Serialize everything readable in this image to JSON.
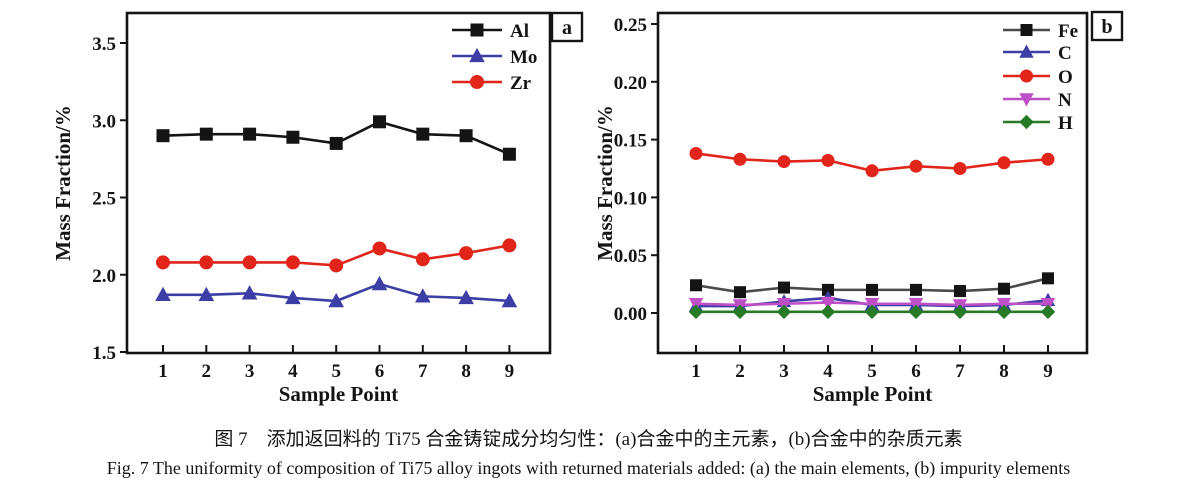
{
  "figure": {
    "caption_zh": "图 7　添加返回料的 Ti75 合金铸锭成分均匀性：(a)合金中的主元素，(b)合金中的杂质元素",
    "caption_en": "Fig. 7   The uniformity of composition of Ti75 alloy ingots with returned materials added: (a) the main elements, (b) impurity elements"
  },
  "chart_data": [
    {
      "type": "line",
      "panel_label": "a",
      "xlabel": "Sample Point",
      "ylabel": "Mass Fraction/%",
      "categories": [
        "1",
        "2",
        "3",
        "4",
        "5",
        "6",
        "7",
        "8",
        "9"
      ],
      "ylim": [
        1.5,
        3.5
      ],
      "yticks": [
        "1.5",
        "2.0",
        "2.5",
        "3.0",
        "3.5"
      ],
      "grid": "off",
      "legend_position": "top-right-inside",
      "series": [
        {
          "name": "Al",
          "marker": "square",
          "color": "#141414",
          "line_color": "#141414",
          "values": [
            2.9,
            2.91,
            2.91,
            2.89,
            2.85,
            2.99,
            2.91,
            2.9,
            2.78
          ]
        },
        {
          "name": "Mo",
          "marker": "triangle-up",
          "color": "#3d3da6",
          "line_color": "#3d3da6",
          "values": [
            1.87,
            1.87,
            1.88,
            1.85,
            1.83,
            1.94,
            1.86,
            1.85,
            1.83
          ]
        },
        {
          "name": "Zr",
          "marker": "circle",
          "color": "#e1251b",
          "line_color": "#e1251b",
          "values": [
            2.08,
            2.08,
            2.08,
            2.08,
            2.06,
            2.17,
            2.1,
            2.14,
            2.19
          ]
        }
      ]
    },
    {
      "type": "line",
      "panel_label": "b",
      "xlabel": "Sample Point",
      "ylabel": "Mass Fraction/%",
      "categories": [
        "1",
        "2",
        "3",
        "4",
        "5",
        "6",
        "7",
        "8",
        "9"
      ],
      "ylim": [
        0.0,
        0.25
      ],
      "yticks": [
        "0.00",
        "0.05",
        "0.10",
        "0.15",
        "0.20",
        "0.25"
      ],
      "grid": "off",
      "legend_position": "top-right-inside",
      "series": [
        {
          "name": "Fe",
          "marker": "square",
          "color": "#141414",
          "line_color": "#4a4a4a",
          "values": [
            0.024,
            0.018,
            0.022,
            0.02,
            0.02,
            0.02,
            0.019,
            0.021,
            0.03
          ]
        },
        {
          "name": "C",
          "marker": "triangle-up",
          "color": "#3d3da6",
          "line_color": "#3d3da6",
          "values": [
            0.006,
            0.006,
            0.01,
            0.013,
            0.007,
            0.007,
            0.006,
            0.007,
            0.011
          ]
        },
        {
          "name": "O",
          "marker": "circle",
          "color": "#e1251b",
          "line_color": "#e1251b",
          "values": [
            0.138,
            0.133,
            0.131,
            0.132,
            0.123,
            0.127,
            0.125,
            0.13,
            0.133
          ]
        },
        {
          "name": "N",
          "marker": "triangle-down",
          "color": "#bf4fc6",
          "line_color": "#bf4fc6",
          "values": [
            0.008,
            0.007,
            0.008,
            0.009,
            0.008,
            0.008,
            0.007,
            0.008,
            0.008
          ]
        },
        {
          "name": "H",
          "marker": "diamond",
          "color": "#267a26",
          "line_color": "#267a26",
          "values": [
            0.001,
            0.001,
            0.001,
            0.001,
            0.001,
            0.001,
            0.001,
            0.001,
            0.001
          ]
        }
      ]
    }
  ]
}
